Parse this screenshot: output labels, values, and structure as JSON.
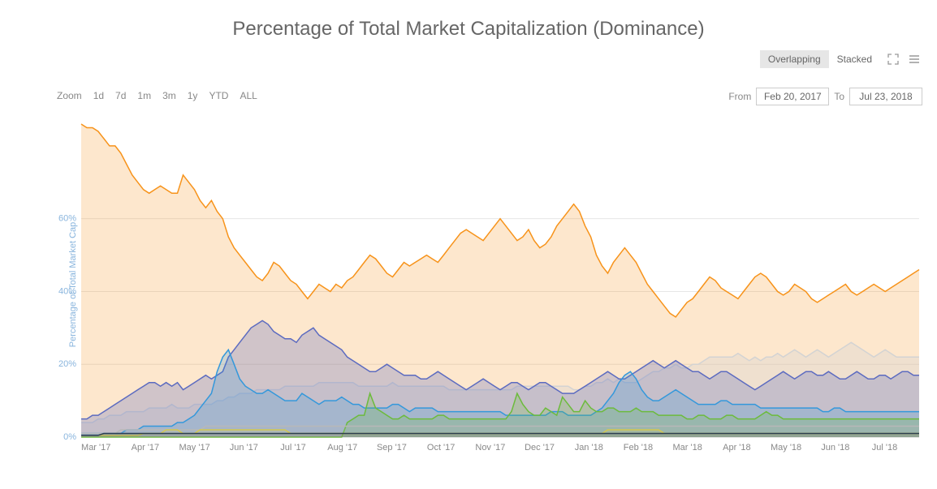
{
  "title": "Percentage of Total Market Capitalization (Dominance)",
  "mode": {
    "overlapping": "Overlapping",
    "stacked": "Stacked",
    "active": "overlapping"
  },
  "zoom": {
    "label": "Zoom",
    "options": [
      "1d",
      "7d",
      "1m",
      "3m",
      "1y",
      "YTD",
      "ALL"
    ]
  },
  "date_range": {
    "from_label": "From",
    "from_value": "Feb 20, 2017",
    "to_label": "To",
    "to_value": "Jul 23, 2018"
  },
  "y_axis": {
    "label": "Percentage of Total Market Cap",
    "ticks": [
      0,
      20,
      40,
      60
    ],
    "tick_labels": [
      "0%",
      "20%",
      "40%",
      "60%"
    ],
    "ylim": [
      0,
      88
    ],
    "label_color": "#88b4dd",
    "label_fontsize": 11
  },
  "x_axis": {
    "ticks": [
      "Mar '17",
      "Apr '17",
      "May '17",
      "Jun '17",
      "Jul '17",
      "Aug '17",
      "Sep '17",
      "Oct '17",
      "Nov '17",
      "Dec '17",
      "Jan '18",
      "Feb '18",
      "Mar '18",
      "Apr '18",
      "May '18",
      "Jun '18",
      "Jul '18"
    ],
    "label_fontsize": 11,
    "label_color": "#888888"
  },
  "background_color": "#ffffff",
  "grid_color": "#e6e6e6",
  "title_fontsize": 24,
  "series": [
    {
      "id": "bitcoin",
      "color": "#f7931a",
      "fill": "#f7931a",
      "fill_opacity": 0.22,
      "line_width": 1.5,
      "data": [
        86,
        85,
        85,
        84,
        82,
        80,
        80,
        78,
        75,
        72,
        70,
        68,
        67,
        68,
        69,
        68,
        67,
        67,
        72,
        70,
        68,
        65,
        63,
        65,
        62,
        60,
        55,
        52,
        50,
        48,
        46,
        44,
        43,
        45,
        48,
        47,
        45,
        43,
        42,
        40,
        38,
        40,
        42,
        41,
        40,
        42,
        41,
        43,
        44,
        46,
        48,
        50,
        49,
        47,
        45,
        44,
        46,
        48,
        47,
        48,
        49,
        50,
        49,
        48,
        50,
        52,
        54,
        56,
        57,
        56,
        55,
        54,
        56,
        58,
        60,
        58,
        56,
        54,
        55,
        57,
        54,
        52,
        53,
        55,
        58,
        60,
        62,
        64,
        62,
        58,
        55,
        50,
        47,
        45,
        48,
        50,
        52,
        50,
        48,
        45,
        42,
        40,
        38,
        36,
        34,
        33,
        35,
        37,
        38,
        40,
        42,
        44,
        43,
        41,
        40,
        39,
        38,
        40,
        42,
        44,
        45,
        44,
        42,
        40,
        39,
        40,
        42,
        41,
        40,
        38,
        37,
        38,
        39,
        40,
        41,
        42,
        40,
        39,
        40,
        41,
        42,
        41,
        40,
        41,
        42,
        43,
        44,
        45,
        46
      ]
    },
    {
      "id": "ethereum",
      "color": "#5c6bc0",
      "fill": "#5c6bc0",
      "fill_opacity": 0.28,
      "line_width": 1.5,
      "data": [
        5,
        5,
        6,
        6,
        7,
        8,
        9,
        10,
        11,
        12,
        13,
        14,
        15,
        15,
        14,
        15,
        14,
        15,
        13,
        14,
        15,
        16,
        17,
        16,
        17,
        18,
        22,
        24,
        26,
        28,
        30,
        31,
        32,
        31,
        29,
        28,
        27,
        27,
        26,
        28,
        29,
        30,
        28,
        27,
        26,
        25,
        24,
        22,
        21,
        20,
        19,
        18,
        18,
        19,
        20,
        19,
        18,
        17,
        17,
        17,
        16,
        16,
        17,
        18,
        17,
        16,
        15,
        14,
        13,
        14,
        15,
        16,
        15,
        14,
        13,
        14,
        15,
        15,
        14,
        13,
        14,
        15,
        15,
        14,
        13,
        12,
        12,
        12,
        13,
        14,
        15,
        16,
        17,
        18,
        17,
        16,
        16,
        17,
        18,
        19,
        20,
        21,
        20,
        19,
        20,
        21,
        20,
        19,
        18,
        18,
        17,
        16,
        17,
        18,
        18,
        17,
        16,
        15,
        14,
        13,
        14,
        15,
        16,
        17,
        18,
        17,
        16,
        17,
        18,
        18,
        17,
        17,
        18,
        17,
        16,
        16,
        17,
        18,
        17,
        16,
        16,
        17,
        17,
        16,
        17,
        18,
        18,
        17,
        17
      ]
    },
    {
      "id": "others",
      "color": "#d3d3d3",
      "fill": "#d3d3d3",
      "fill_opacity": 0.35,
      "line_width": 1.5,
      "data": [
        4,
        4,
        4,
        5,
        5,
        6,
        6,
        6,
        7,
        7,
        7,
        7,
        8,
        8,
        8,
        8,
        9,
        8,
        8,
        8,
        9,
        9,
        9,
        9,
        10,
        10,
        11,
        11,
        12,
        12,
        12,
        13,
        13,
        13,
        13,
        13,
        14,
        14,
        14,
        14,
        14,
        14,
        15,
        15,
        15,
        15,
        15,
        15,
        15,
        14,
        14,
        14,
        14,
        14,
        14,
        15,
        14,
        14,
        14,
        14,
        14,
        14,
        14,
        14,
        14,
        13,
        13,
        13,
        13,
        13,
        13,
        13,
        13,
        13,
        13,
        13,
        13,
        14,
        14,
        14,
        14,
        14,
        14,
        14,
        14,
        14,
        14,
        13,
        13,
        14,
        14,
        15,
        15,
        16,
        15,
        16,
        15,
        15,
        15,
        16,
        17,
        18,
        18,
        19,
        19,
        20,
        19,
        19,
        20,
        20,
        21,
        22,
        22,
        22,
        22,
        22,
        23,
        22,
        21,
        22,
        21,
        22,
        22,
        23,
        22,
        23,
        24,
        23,
        22,
        23,
        24,
        23,
        22,
        23,
        24,
        25,
        26,
        25,
        24,
        23,
        22,
        23,
        24,
        23,
        22,
        22,
        22,
        22,
        22
      ]
    },
    {
      "id": "ripple",
      "color": "#3498db",
      "fill": "#3498db",
      "fill_opacity": 0.22,
      "line_width": 1.3,
      "data": [
        1,
        1,
        1,
        1,
        1,
        1,
        1,
        1,
        2,
        2,
        2,
        3,
        3,
        3,
        3,
        3,
        3,
        4,
        4,
        5,
        6,
        8,
        10,
        12,
        18,
        22,
        24,
        20,
        16,
        14,
        13,
        12,
        12,
        13,
        12,
        11,
        10,
        10,
        10,
        12,
        11,
        10,
        9,
        10,
        10,
        10,
        11,
        10,
        9,
        9,
        8,
        8,
        8,
        8,
        8,
        9,
        9,
        8,
        7,
        8,
        8,
        8,
        8,
        7,
        7,
        7,
        7,
        7,
        7,
        7,
        7,
        7,
        7,
        7,
        7,
        6,
        6,
        6,
        6,
        6,
        6,
        6,
        6,
        7,
        7,
        7,
        6,
        6,
        6,
        6,
        6,
        7,
        8,
        10,
        12,
        15,
        17,
        18,
        16,
        13,
        11,
        10,
        10,
        11,
        12,
        13,
        12,
        11,
        10,
        9,
        9,
        9,
        9,
        10,
        10,
        9,
        9,
        9,
        9,
        9,
        8,
        8,
        8,
        8,
        8,
        8,
        8,
        8,
        8,
        8,
        8,
        7,
        7,
        8,
        8,
        7,
        7,
        7,
        7,
        7,
        7,
        7,
        7,
        7,
        7,
        7,
        7,
        7,
        7
      ]
    },
    {
      "id": "bitcoin-cash",
      "color": "#6cbb3c",
      "fill": "#6cbb3c",
      "fill_opacity": 0.22,
      "line_width": 1.3,
      "data": [
        0,
        0,
        0,
        0,
        0,
        0,
        0,
        0,
        0,
        0,
        0,
        0,
        0,
        0,
        0,
        0,
        0,
        0,
        0,
        0,
        0,
        0,
        0,
        0,
        0,
        0,
        0,
        0,
        0,
        0,
        0,
        0,
        0,
        0,
        0,
        0,
        0,
        0,
        0,
        0,
        0,
        0,
        0,
        0,
        0,
        0,
        0,
        4,
        5,
        6,
        6,
        12,
        8,
        7,
        6,
        5,
        5,
        6,
        5,
        5,
        5,
        5,
        5,
        6,
        6,
        5,
        5,
        5,
        5,
        5,
        5,
        5,
        5,
        5,
        5,
        5,
        7,
        12,
        9,
        7,
        6,
        6,
        8,
        7,
        6,
        11,
        9,
        7,
        7,
        10,
        8,
        7,
        7,
        8,
        8,
        7,
        7,
        7,
        8,
        7,
        7,
        7,
        6,
        6,
        6,
        6,
        6,
        5,
        5,
        6,
        6,
        5,
        5,
        5,
        6,
        6,
        5,
        5,
        5,
        5,
        6,
        7,
        6,
        6,
        5,
        5,
        5,
        5,
        5,
        5,
        5,
        5,
        5,
        5,
        5,
        5,
        5,
        5,
        5,
        5,
        5,
        5,
        5,
        5,
        5,
        5,
        5,
        5,
        5
      ]
    },
    {
      "id": "litecoin",
      "color": "#b8b8b8",
      "fill": "#b8b8b8",
      "fill_opacity": 0.15,
      "line_width": 1,
      "data": [
        1,
        1,
        1,
        1,
        1,
        1,
        1,
        2,
        2,
        2,
        2,
        2,
        2,
        2,
        2,
        2,
        2,
        2,
        2,
        2,
        2,
        2,
        3,
        3,
        3,
        3,
        3,
        3,
        3,
        3,
        3,
        3,
        3,
        3,
        3,
        3,
        3,
        3,
        3,
        3,
        3,
        3,
        3,
        3,
        3,
        3,
        3,
        3,
        3,
        3,
        3,
        3,
        3,
        3,
        3,
        3,
        3,
        3,
        3,
        3,
        3,
        3,
        3,
        3,
        3,
        3,
        3,
        3,
        3,
        3,
        3,
        3,
        3,
        3,
        3,
        3,
        3,
        3,
        3,
        3,
        3,
        3,
        3,
        3,
        3,
        3,
        3,
        3,
        3,
        3,
        3,
        3,
        3,
        3,
        3,
        3,
        3,
        3,
        3,
        3,
        3,
        3,
        3,
        3,
        3,
        3,
        3,
        3,
        3,
        3,
        3,
        3,
        3,
        3,
        3,
        3,
        3,
        3,
        3,
        3,
        3,
        3,
        3,
        3,
        3,
        3,
        3,
        3,
        3,
        3,
        3,
        3,
        3,
        3,
        3,
        3,
        3,
        3,
        3,
        3,
        3,
        3,
        3,
        3,
        3,
        3,
        3,
        3,
        3
      ]
    },
    {
      "id": "dash",
      "color": "#2c3e50",
      "fill": "#2c3e50",
      "fill_opacity": 0.15,
      "line_width": 1,
      "data": [
        0.5,
        0.5,
        0.5,
        0.5,
        1,
        1,
        1,
        1,
        1,
        1,
        1,
        1,
        1,
        1,
        1,
        1,
        1,
        1,
        1,
        1,
        1,
        1,
        1,
        1,
        1,
        1,
        1,
        1,
        1,
        1,
        1,
        1,
        1,
        1,
        1,
        1,
        1,
        1,
        1,
        1,
        1,
        1,
        1,
        1,
        1,
        1,
        1,
        1,
        1,
        1,
        1,
        1,
        1,
        1,
        1,
        1,
        1,
        1,
        1,
        1,
        1,
        1,
        1,
        1,
        1,
        1,
        1,
        1,
        1,
        1,
        1,
        1,
        1,
        1,
        1,
        1,
        1,
        1,
        1,
        1,
        1,
        1,
        1,
        1,
        1,
        1,
        1,
        1,
        1,
        1,
        1,
        1,
        1,
        1,
        1,
        1,
        1,
        1,
        1,
        1,
        1,
        1,
        1,
        1,
        1,
        1,
        1,
        1,
        1,
        1,
        1,
        1,
        1,
        1,
        1,
        1,
        1,
        1,
        1,
        1,
        1,
        1,
        1,
        1,
        1,
        1,
        1,
        1,
        1,
        1,
        1,
        1,
        1,
        1,
        1,
        1,
        1,
        1,
        1,
        1,
        1,
        1,
        1,
        1,
        1,
        1,
        1,
        1,
        1
      ]
    },
    {
      "id": "nem",
      "color": "#d4c94f",
      "fill": "#d4c94f",
      "fill_opacity": 0.15,
      "line_width": 1,
      "data": [
        0.5,
        0.5,
        0.5,
        0.5,
        0.5,
        0.5,
        0.5,
        0.5,
        0.5,
        0.5,
        0.5,
        1,
        1,
        1,
        1,
        2,
        2,
        2,
        1,
        1,
        1,
        2,
        2,
        2,
        2,
        2,
        2,
        2,
        2,
        2,
        2,
        2,
        2,
        2,
        2,
        2,
        2,
        1,
        1,
        1,
        1,
        1,
        1,
        1,
        1,
        1,
        1,
        1,
        1,
        1,
        1,
        1,
        1,
        1,
        1,
        1,
        1,
        1,
        1,
        1,
        1,
        1,
        1,
        1,
        1,
        1,
        1,
        1,
        1,
        1,
        1,
        1,
        1,
        1,
        1,
        1,
        1,
        1,
        1,
        1,
        1,
        1,
        1,
        1,
        1,
        1,
        1,
        1,
        1,
        1,
        1,
        1,
        1,
        2,
        2,
        2,
        2,
        2,
        2,
        2,
        2,
        2,
        2,
        1,
        1,
        1,
        1,
        1,
        1,
        1,
        1,
        1,
        1,
        1,
        1,
        1,
        1,
        1,
        1,
        1,
        1,
        1,
        1,
        1,
        1,
        1,
        1,
        1,
        1,
        1,
        1,
        1,
        1,
        1,
        1,
        1,
        1,
        1,
        1,
        1,
        1,
        1,
        1,
        1,
        1,
        1,
        1,
        1,
        1
      ]
    }
  ]
}
